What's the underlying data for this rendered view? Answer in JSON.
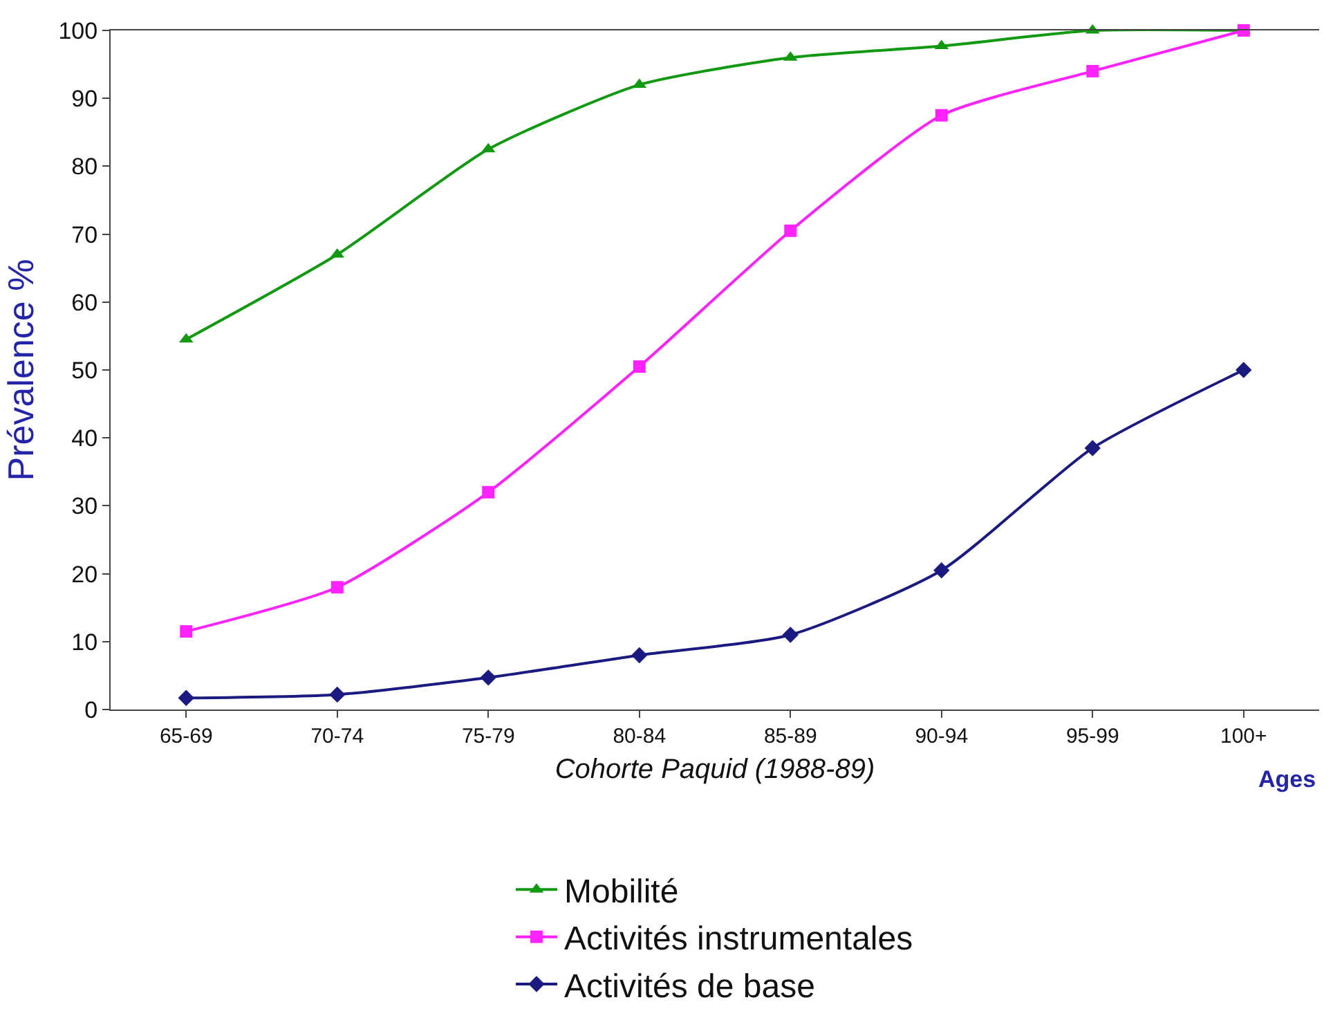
{
  "chart_data": {
    "type": "line",
    "ylabel": "Prévalence %",
    "xlabel": "Cohorte Paquid (1988-89)",
    "categories": [
      "65-69",
      "70-74",
      "75-79",
      "80-84",
      "85-89",
      "90-94",
      "95-99",
      "100+"
    ],
    "series": [
      {
        "name": "Mobilité",
        "color": "#119911",
        "marker": "triangle",
        "values": [
          54.5,
          67,
          82.5,
          92,
          96,
          97.7,
          100,
          100
        ]
      },
      {
        "name": "Activités instrumentales",
        "color": "#ff22ff",
        "marker": "square",
        "values": [
          11.5,
          18,
          32,
          50.5,
          70.5,
          87.5,
          94,
          100
        ]
      },
      {
        "name": "Activités de base",
        "color": "#1a1a80",
        "marker": "diamond",
        "values": [
          1.7,
          2.2,
          4.7,
          8,
          11,
          20.5,
          38.5,
          50
        ]
      }
    ],
    "ylim": [
      0,
      100
    ],
    "yticks": [
      0,
      10,
      20,
      30,
      40,
      50,
      60,
      70,
      80,
      90,
      100
    ],
    "annotations": [
      "Ages"
    ],
    "legend": "bottom",
    "line_style": "solid"
  }
}
